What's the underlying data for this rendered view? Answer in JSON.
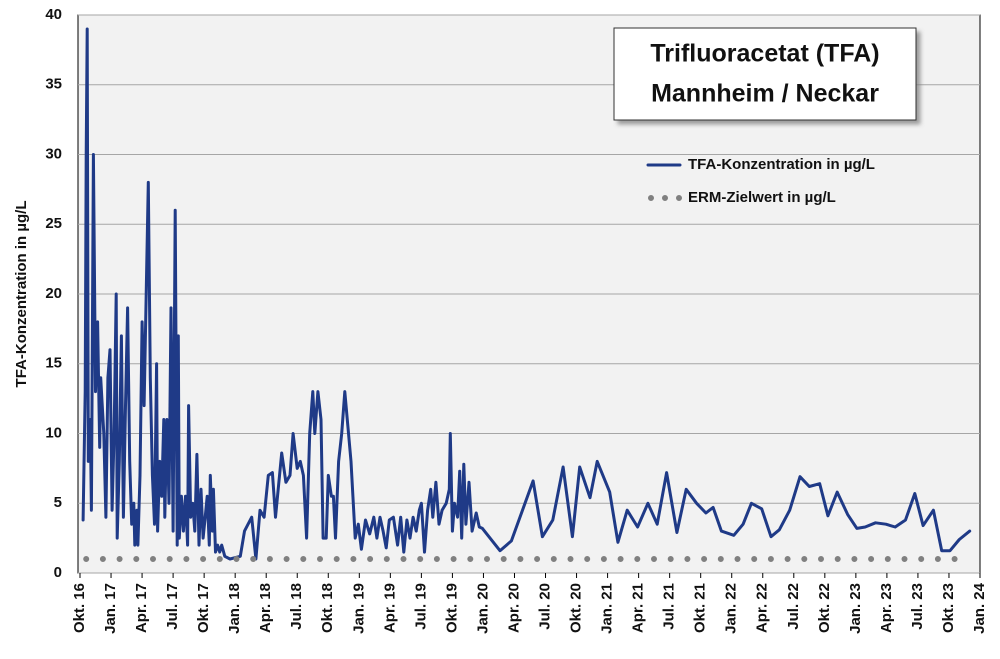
{
  "chart_data": {
    "type": "line",
    "title": [
      "Trifluoracetat (TFA)",
      "Mannheim / Neckar"
    ],
    "y_label": "TFA-Konzentration in µg/L",
    "xlim": [
      0,
      87
    ],
    "xticks": [
      {
        "value": 0,
        "label": "Okt. 16"
      },
      {
        "value": 3,
        "label": "Jan. 17"
      },
      {
        "value": 6,
        "label": "Apr. 17"
      },
      {
        "value": 9,
        "label": "Jul. 17"
      },
      {
        "value": 12,
        "label": "Okt. 17"
      },
      {
        "value": 15,
        "label": "Jan. 18"
      },
      {
        "value": 18,
        "label": "Apr. 18"
      },
      {
        "value": 21,
        "label": "Jul. 18"
      },
      {
        "value": 24,
        "label": "Okt. 18"
      },
      {
        "value": 27,
        "label": "Jan. 19"
      },
      {
        "value": 30,
        "label": "Apr. 19"
      },
      {
        "value": 33,
        "label": "Jul. 19"
      },
      {
        "value": 36,
        "label": "Okt. 19"
      },
      {
        "value": 39,
        "label": "Jan. 20"
      },
      {
        "value": 42,
        "label": "Apr. 20"
      },
      {
        "value": 45,
        "label": "Jul. 20"
      },
      {
        "value": 48,
        "label": "Okt. 20"
      },
      {
        "value": 51,
        "label": "Jan. 21"
      },
      {
        "value": 54,
        "label": "Apr. 21"
      },
      {
        "value": 57,
        "label": "Jul. 21"
      },
      {
        "value": 60,
        "label": "Okt. 21"
      },
      {
        "value": 63,
        "label": "Jan. 22"
      },
      {
        "value": 66,
        "label": "Apr. 22"
      },
      {
        "value": 69,
        "label": "Jul. 22"
      },
      {
        "value": 72,
        "label": "Okt. 22"
      },
      {
        "value": 75,
        "label": "Jan. 23"
      },
      {
        "value": 78,
        "label": "Apr. 23"
      },
      {
        "value": 81,
        "label": "Jul. 23"
      },
      {
        "value": 84,
        "label": "Okt. 23"
      },
      {
        "value": 87,
        "label": "Jan. 24"
      }
    ],
    "ylim": [
      0,
      40
    ],
    "yticks": [
      0,
      5,
      10,
      15,
      20,
      25,
      30,
      35,
      40
    ],
    "grid": true,
    "legend": "upper right",
    "series": [
      {
        "name": "TFA-Konzentration in µg/L",
        "color": "#1f3a87",
        "style": "solid",
        "x": [
          0.3,
          0.5,
          0.6,
          0.7,
          0.8,
          1.0,
          1.1,
          1.3,
          1.5,
          1.7,
          1.9,
          2.0,
          2.3,
          2.5,
          2.7,
          2.9,
          3.1,
          3.3,
          3.5,
          3.6,
          3.8,
          4.0,
          4.2,
          4.4,
          4.6,
          4.8,
          5.0,
          5.2,
          5.3,
          5.5,
          5.6,
          5.8,
          6.0,
          6.2,
          6.4,
          6.6,
          6.8,
          7.0,
          7.2,
          7.4,
          7.5,
          7.7,
          7.9,
          8.1,
          8.2,
          8.4,
          8.6,
          8.8,
          9.0,
          9.2,
          9.4,
          9.5,
          9.6,
          9.8,
          10.0,
          10.2,
          10.4,
          10.5,
          10.7,
          10.9,
          11.1,
          11.3,
          11.5,
          11.7,
          11.9,
          12.1,
          12.3,
          12.5,
          12.6,
          12.8,
          12.9,
          13.1,
          13.3,
          13.5,
          13.7,
          14.0,
          14.5,
          15.5,
          15.9,
          16.6,
          17.0,
          17.4,
          17.8,
          18.2,
          18.6,
          18.9,
          19.5,
          19.9,
          20.3,
          20.6,
          21.0,
          21.3,
          21.6,
          21.9,
          22.2,
          22.5,
          22.7,
          23.0,
          23.3,
          23.5,
          23.8,
          24.0,
          24.3,
          24.5,
          24.7,
          25.0,
          25.3,
          25.6,
          25.9,
          26.2,
          26.6,
          26.9,
          27.2,
          27.6,
          28.0,
          28.4,
          28.7,
          29.0,
          29.3,
          29.6,
          29.9,
          30.3,
          30.7,
          31.0,
          31.3,
          31.6,
          31.9,
          32.2,
          32.5,
          32.8,
          33.0,
          33.3,
          33.6,
          33.9,
          34.1,
          34.4,
          34.7,
          35.0,
          35.4,
          35.7,
          35.8,
          36.0,
          36.2,
          36.5,
          36.7,
          36.9,
          37.1,
          37.3,
          37.6,
          37.9,
          38.3,
          38.6,
          38.9,
          40.6,
          41.7,
          43.8,
          44.7,
          45.7,
          46.7,
          47.6,
          48.3,
          49.3,
          50.0,
          51.2,
          52.0,
          52.9,
          53.9,
          54.9,
          55.8,
          56.7,
          57.7,
          58.6,
          59.6,
          60.5,
          61.2,
          62.0,
          63.2,
          64.1,
          64.9,
          65.9,
          66.8,
          67.6,
          68.6,
          69.6,
          70.5,
          71.5,
          72.3,
          73.2,
          74.2,
          75.1,
          75.9,
          76.9,
          77.9,
          78.8,
          79.8,
          80.7,
          81.5,
          82.5,
          83.3,
          84.1,
          85.0,
          86.0
        ],
        "values": [
          3.8,
          13,
          30,
          39,
          8,
          11,
          4.5,
          30,
          13,
          18,
          9,
          14,
          10,
          4,
          14,
          16,
          4.5,
          10,
          20,
          2.5,
          8,
          17,
          4,
          12,
          19,
          8,
          3.5,
          5,
          2,
          4.5,
          2,
          7,
          18,
          12,
          20,
          28,
          14,
          7,
          3.5,
          15,
          3,
          8,
          5.5,
          11,
          4,
          11,
          5,
          19,
          3,
          26,
          2,
          17,
          2.5,
          5.5,
          3,
          5.5,
          2,
          12,
          4,
          5,
          3,
          8.5,
          2,
          6,
          2.5,
          4,
          5.5,
          2,
          7,
          3,
          6,
          1.5,
          2,
          1.5,
          2,
          1.2,
          1,
          1.2,
          3,
          4,
          1,
          4.5,
          4,
          7,
          7.2,
          4,
          8.6,
          6.5,
          7,
          10,
          7.5,
          8,
          7,
          2.5,
          10,
          13,
          10,
          13,
          11,
          2.5,
          2.5,
          7,
          5.5,
          5.5,
          2.5,
          8,
          10,
          13,
          10.5,
          8,
          2.5,
          3.5,
          1.7,
          3.8,
          2.8,
          4,
          2.5,
          4,
          3,
          1.8,
          3.8,
          4,
          2,
          4,
          1.5,
          3.8,
          2.5,
          4,
          3,
          4.5,
          5,
          1.5,
          4.5,
          6,
          4,
          6.5,
          3.5,
          4.5,
          5,
          6,
          10,
          3,
          5,
          4,
          7.3,
          2.5,
          7.8,
          3.5,
          6.5,
          3,
          4.3,
          3.3,
          3.2,
          1.6,
          2.3,
          6.6,
          2.6,
          3.8,
          7.6,
          2.6,
          7.6,
          5.4,
          8,
          5.8,
          2.2,
          4.5,
          3.3,
          5,
          3.5,
          7.2,
          2.9,
          6,
          5,
          4.3,
          4.7,
          3,
          2.7,
          3.5,
          5,
          4.6,
          2.6,
          3.1,
          4.5,
          6.9,
          6.2,
          6.4,
          4.1,
          5.8,
          4.2,
          3.2,
          3.3,
          3.6,
          3.5,
          3.3,
          3.8,
          5.7,
          3.4,
          4.5,
          1.6,
          1.6,
          2.4,
          3.0
        ]
      },
      {
        "name": "ERM-Zielwert in µg/L",
        "color": "#808080",
        "style": "dotted",
        "x": [
          0.6,
          85.5
        ],
        "values": [
          1,
          1
        ]
      }
    ]
  }
}
